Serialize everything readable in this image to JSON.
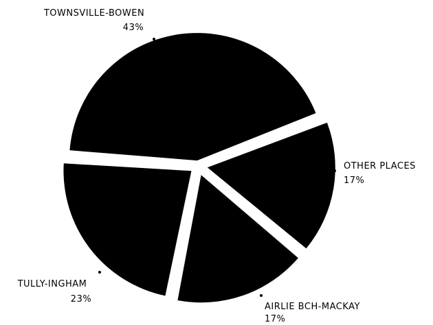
{
  "chart_data": {
    "type": "pie",
    "title": "",
    "colors": {
      "slice": "#000000",
      "background": "#ffffff"
    },
    "slices": [
      {
        "label": "TOWNSVILLE-BOWEN",
        "percent_label": "43%",
        "value": 43
      },
      {
        "label": "OTHER PLACES",
        "percent_label": "17%",
        "value": 17
      },
      {
        "label": "AIRLIE BCH-MACKAY",
        "percent_label": "17%",
        "value": 17
      },
      {
        "label": "TULLY-INGHAM",
        "percent_label": "23%",
        "value": 23
      }
    ]
  }
}
